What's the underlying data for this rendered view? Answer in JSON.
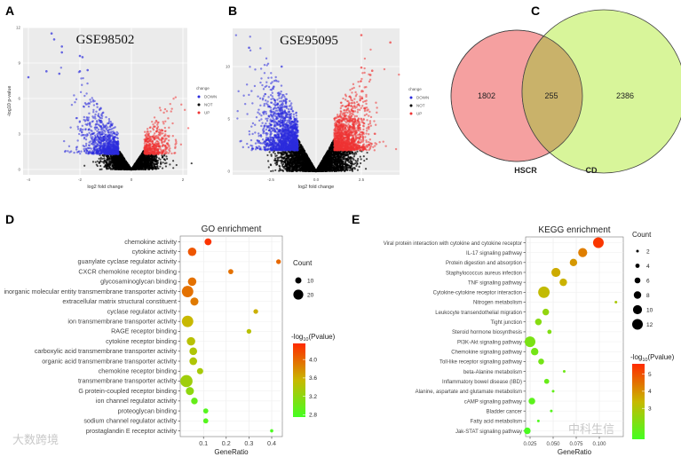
{
  "panels": {
    "A": "A",
    "B": "B",
    "C": "C",
    "D": "D",
    "E": "E"
  },
  "watermarks": {
    "left": "大数跨境",
    "right": "中科生信"
  },
  "chart_data": [
    {
      "id": "A",
      "type": "scatter",
      "title": "GSE98502",
      "xlabel": "log2 fold change",
      "ylabel": "-log10 p-value",
      "xlim": [
        -4.2,
        2.2
      ],
      "ylim": [
        0,
        12
      ],
      "xticks": [
        "-4",
        "-2",
        "0",
        "2"
      ],
      "yticks": [
        "0",
        "3",
        "6",
        "9",
        "12"
      ],
      "legend": {
        "title": "change",
        "entries": [
          "DOWN",
          "NOT",
          "UP"
        ],
        "placement": "right"
      },
      "colors": {
        "DOWN": "#2b2bdd",
        "NOT": "#000000",
        "UP": "#ee3333"
      },
      "groups": {
        "DOWN": {
          "n": 900,
          "fc_threshold": -0.5,
          "p_threshold": 1.3
        },
        "NOT": {
          "n": 2500
        },
        "UP": {
          "n": 450,
          "fc_threshold": 0.5,
          "p_threshold": 1.3
        }
      },
      "outliers": [
        [
          -3.1,
          11.5
        ],
        [
          -3.0,
          11.0
        ],
        [
          -2.7,
          10.4
        ],
        [
          -2.7,
          9.9
        ],
        [
          -2.0,
          9.6
        ],
        [
          -1.9,
          9.5
        ],
        [
          -4.0,
          7.8
        ],
        [
          -3.3,
          8.3
        ],
        [
          -2.8,
          8.1
        ],
        [
          -2.0,
          8.3
        ],
        [
          -1.7,
          8.4
        ]
      ]
    },
    {
      "id": "B",
      "type": "scatter",
      "title": "GSE95095",
      "xlabel": "log2 fold change",
      "ylabel": "",
      "xlim": [
        -4.2,
        4.3
      ],
      "ylim": [
        0,
        13.5
      ],
      "xticks": [
        "-2.5",
        "0.0",
        "2.5"
      ],
      "yticks": [
        "0",
        "5",
        "10"
      ],
      "legend": {
        "title": "change",
        "entries": [
          "DOWN",
          "NOT",
          "UP"
        ],
        "placement": "right"
      },
      "colors": {
        "DOWN": "#2b2bdd",
        "NOT": "#000000",
        "UP": "#ee3333"
      },
      "groups": {
        "DOWN": {
          "n": 1600,
          "fc_threshold": -1,
          "p_threshold": 2
        },
        "NOT": {
          "n": 3500
        },
        "UP": {
          "n": 1300,
          "fc_threshold": 1,
          "p_threshold": 2
        }
      },
      "outliers": [
        [
          -3.7,
          11.8
        ],
        [
          -1.9,
          10.0
        ],
        [
          2.5,
          13.0
        ],
        [
          4.1,
          12.3
        ],
        [
          2.5,
          9.9
        ],
        [
          3.1,
          9.6
        ],
        [
          3.0,
          9.2
        ]
      ]
    },
    {
      "id": "C",
      "type": "venn",
      "sets": [
        {
          "name": "HSCR",
          "only": "1802",
          "color": "#f5a0a0"
        },
        {
          "name": "CD",
          "only": "2386",
          "color": "#d8f59a"
        }
      ],
      "intersection": "255",
      "overlap_color": "#c9b26a"
    },
    {
      "id": "D",
      "type": "scatter",
      "title": "GO enrichment",
      "xlabel": "GeneRatio",
      "xticks": [
        "0.1",
        "0.2",
        "0.3",
        "0.4"
      ],
      "xlim": [
        0,
        0.45
      ],
      "size_legend": {
        "title": "Count",
        "values": [
          10,
          20
        ]
      },
      "color_legend": {
        "title_prefix": "-log",
        "title_sub": "10",
        "title_suffix": "(Pvalue)",
        "ticks": [
          "4.0",
          "3.6",
          "3.2",
          "2.8"
        ],
        "range": [
          2.75,
          4.35
        ]
      },
      "categories": [
        "chemokine activity",
        "cytokine activity",
        "guanylate cyclase regulator activity",
        "CXCR chemokine receptor binding",
        "glycosaminoglycan binding",
        "inorganic molecular entity transmembrane transporter activity",
        "extracellular matrix structural constituent",
        "cyclase regulator activity",
        "ion transmembrane transporter activity",
        "RAGE receptor binding",
        "cytokine receptor binding",
        "carboxylic acid transmembrane transporter activity",
        "organic acid transmembrane transporter activity",
        "chemokine receptor binding",
        "transmembrane transporter activity",
        "G protein-coupled receptor binding",
        "ion channel regulator activity",
        "proteoglycan binding",
        "sodium channel regulator activity",
        "prostaglandin E receptor activity"
      ],
      "gene_ratio": [
        0.12,
        0.05,
        0.43,
        0.22,
        0.05,
        0.03,
        0.06,
        0.33,
        0.03,
        0.3,
        0.045,
        0.055,
        0.055,
        0.085,
        0.025,
        0.04,
        0.06,
        0.11,
        0.11,
        0.4
      ],
      "count": [
        12,
        16,
        6,
        7,
        16,
        24,
        15,
        6,
        24,
        6,
        16,
        14,
        14,
        10,
        26,
        15,
        11,
        7,
        7,
        2
      ],
      "neglog10p": [
        4.3,
        4.1,
        4.0,
        3.95,
        3.95,
        3.95,
        3.9,
        3.6,
        3.55,
        3.45,
        3.45,
        3.4,
        3.4,
        3.35,
        3.3,
        3.2,
        2.95,
        2.85,
        2.85,
        2.8
      ]
    },
    {
      "id": "E",
      "type": "scatter",
      "title": "KEGG enrichment",
      "xlabel": "GeneRatio",
      "xticks": [
        "0.025",
        "0.050",
        "0.075",
        "0.100"
      ],
      "xlim": [
        0.02,
        0.12
      ],
      "size_legend": {
        "title": "Count",
        "values": [
          2,
          4,
          6,
          8,
          10,
          12
        ]
      },
      "color_legend": {
        "title_prefix": "-log",
        "title_sub": "10",
        "title_suffix": "(Pvalue)",
        "ticks": [
          "5",
          "4",
          "3"
        ],
        "range": [
          1.2,
          5.6
        ]
      },
      "categories": [
        "Viral protein interaction with cytokine and cytokine receptor",
        "IL-17 signaling pathway",
        "Protein digestion and absorption",
        "Staphylococcus aureus infection",
        "TNF signaling pathway",
        "Cytokine-cytokine receptor interaction",
        "Nitrogen metabolism",
        "Leukocyte transendothelial migration",
        "Tight junction",
        "Steroid hormone biosynthesis",
        "PI3K-Akt signaling pathway",
        "Chemokine signaling pathway",
        "Toll-like receptor signaling pathway",
        "beta-Alanine metabolism",
        "Inflammatory bowel disease (IBD)",
        "Alanine, aspartate and glutamate metabolism",
        "cAMP signaling pathway",
        "Bladder cancer",
        "Fatty acid metabolism",
        "Jak-STAT signaling pathway"
      ],
      "gene_ratio": [
        0.099,
        0.082,
        0.072,
        0.053,
        0.061,
        0.04,
        0.118,
        0.042,
        0.034,
        0.046,
        0.025,
        0.03,
        0.037,
        0.062,
        0.043,
        0.05,
        0.027,
        0.048,
        0.034,
        0.022
      ],
      "count": [
        12,
        10,
        8,
        10,
        8,
        13,
        2,
        7,
        7,
        4,
        12,
        8,
        6,
        2,
        5,
        2,
        7,
        2,
        2,
        7
      ],
      "neglog10p": [
        5.4,
        4.3,
        3.9,
        3.6,
        3.5,
        3.3,
        2.9,
        2.5,
        2.3,
        2.2,
        2.1,
        2.0,
        2.0,
        1.9,
        1.8,
        1.7,
        1.6,
        1.5,
        1.4,
        1.3
      ]
    }
  ]
}
